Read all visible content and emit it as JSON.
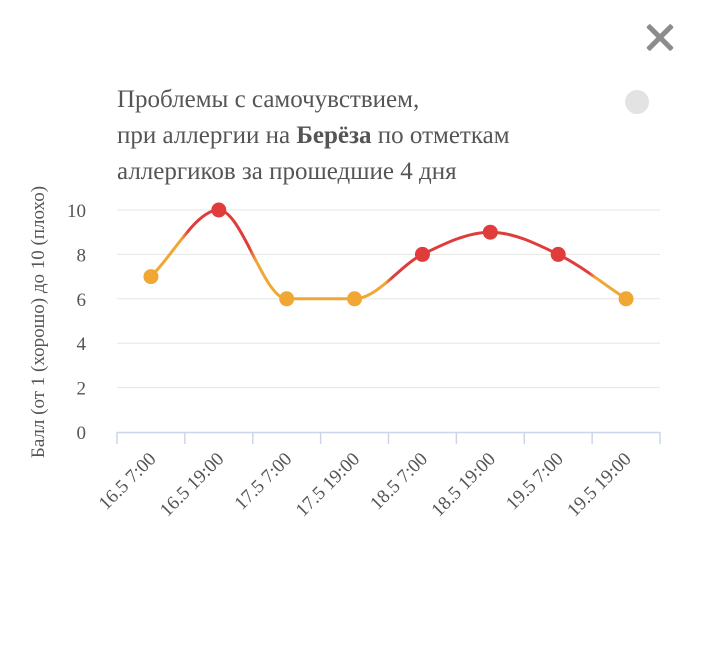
{
  "chart_data": {
    "type": "line",
    "title_line1": "Проблемы с самочувствием,",
    "title_line2_pre": "при аллергии на ",
    "title_line2_bold": "Берёза",
    "title_line2_post": " по отметкам",
    "title_line3": "аллергиков за прошедшие 4 дня",
    "ylabel": "Балл (от 1 (хорошо) до 10 (плохо)",
    "ylim": [
      0,
      10
    ],
    "yticks": [
      0,
      2,
      4,
      6,
      8,
      10
    ],
    "categories": [
      "16.5 7:00",
      "16.5 19:00",
      "17.5 7:00",
      "17.5 19:00",
      "18.5 7:00",
      "18.5 19:00",
      "19.5 7:00",
      "19.5 19:00"
    ],
    "values": [
      7,
      10,
      6,
      6,
      8,
      9,
      8,
      6
    ],
    "grid": true,
    "colors": {
      "high": "#e03c3c",
      "medium": "#f0a733",
      "grid": "#e6e6e6",
      "axis": "#ccd6eb"
    }
  },
  "controls": {
    "close_icon": "close-icon",
    "menu_dot_icon": "circle-icon"
  }
}
